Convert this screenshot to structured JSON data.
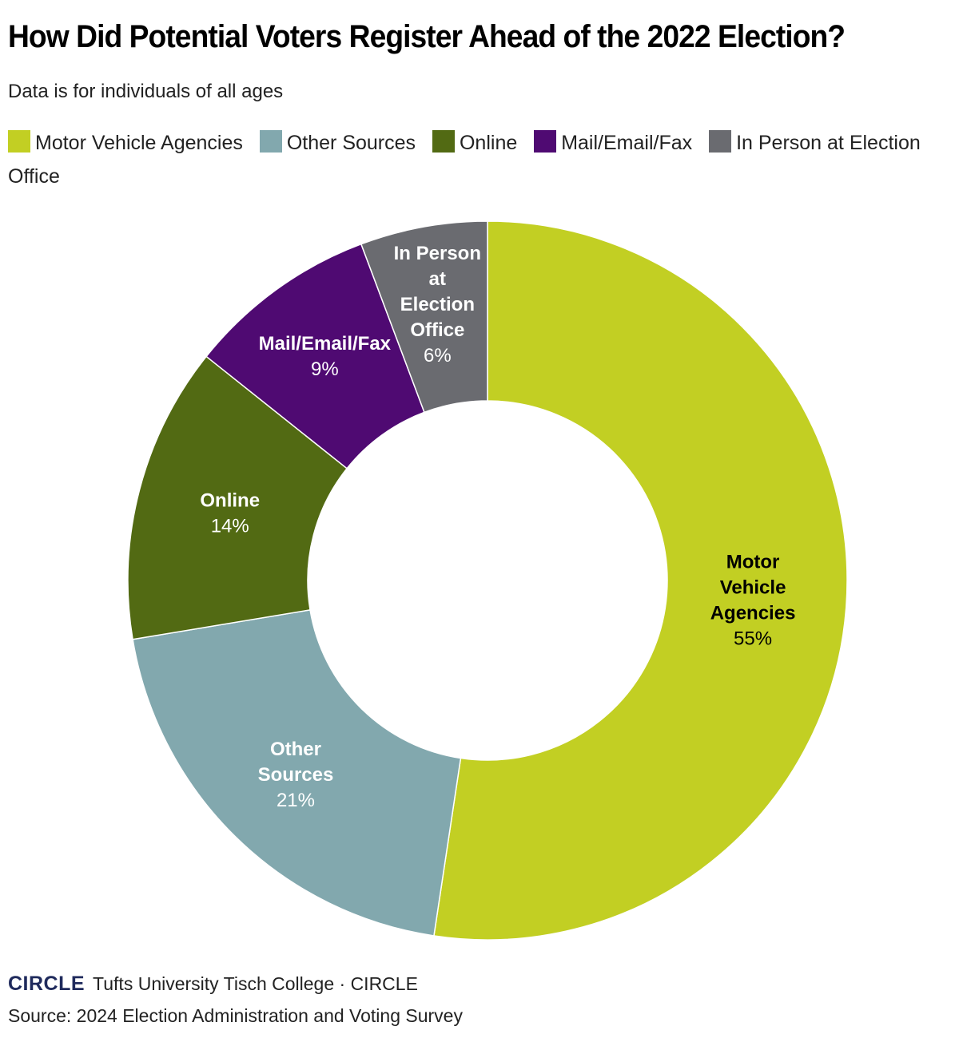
{
  "title": "How Did Potential Voters Register Ahead of the 2022 Election?",
  "subtitle": "Data is for individuals of all ages",
  "legend": [
    {
      "label": "Motor Vehicle Agencies",
      "color": "#c2cf23"
    },
    {
      "label": "Other Sources",
      "color": "#82a8ae"
    },
    {
      "label": "Online",
      "color": "#526a13"
    },
    {
      "label": "Mail/Email/Fax",
      "color": "#4f0a72"
    },
    {
      "label": "In Person at Election Office",
      "color": "#6a6b70"
    }
  ],
  "footer": {
    "logo": "CIRCLE",
    "brand": "Tufts University Tisch College · CIRCLE",
    "source": "Source: 2024 Election Administration and Voting Survey"
  },
  "chart_data": {
    "type": "pie",
    "donut": true,
    "start_angle_deg": 0,
    "direction": "clockwise",
    "series": [
      {
        "name": "Motor Vehicle Agencies",
        "label_lines": [
          "Motor",
          "Vehicle",
          "Agencies"
        ],
        "value": 55,
        "value_label": "55%",
        "color": "#c2cf23",
        "label_color": "#000000"
      },
      {
        "name": "Other Sources",
        "label_lines": [
          "Other",
          "Sources"
        ],
        "value": 21,
        "value_label": "21%",
        "color": "#82a8ae",
        "label_color": "#ffffff"
      },
      {
        "name": "Online",
        "label_lines": [
          "Online"
        ],
        "value": 14,
        "value_label": "14%",
        "color": "#526a13",
        "label_color": "#ffffff"
      },
      {
        "name": "Mail/Email/Fax",
        "label_lines": [
          "Mail/Email/Fax"
        ],
        "value": 9,
        "value_label": "9%",
        "color": "#4f0a72",
        "label_color": "#ffffff"
      },
      {
        "name": "In Person at Election Office",
        "label_lines": [
          "In Person",
          "at",
          "Election",
          "Office"
        ],
        "value": 6,
        "value_label": "6%",
        "color": "#6a6b70",
        "label_color": "#ffffff"
      }
    ]
  }
}
